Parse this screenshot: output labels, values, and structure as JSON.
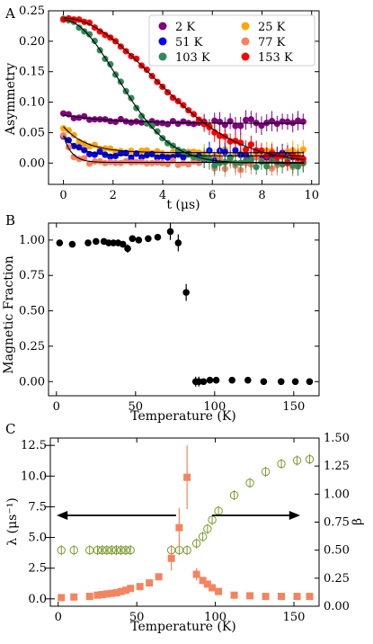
{
  "chart_data": [
    {
      "panel": "A",
      "type": "scatter",
      "xlabel": "t (μs)",
      "ylabel": "Asymmetry",
      "xlim": [
        -0.6,
        10.3
      ],
      "ylim": [
        -0.035,
        0.25
      ],
      "xticks": [
        0,
        2,
        4,
        6,
        8,
        10
      ],
      "yticks": [
        0.0,
        0.05,
        0.1,
        0.15,
        0.2,
        0.25
      ],
      "legend": "top-right",
      "fit_lines": true,
      "series": [
        {
          "name": "2 K",
          "color": "#800080",
          "decay": "flat",
          "a0": 0.079,
          "aInf": 0.065,
          "rate": 0.5,
          "noise": 0.003
        },
        {
          "name": "25 K",
          "color": "#FFA500",
          "decay": "exp",
          "a0": 0.06,
          "aInf": 0.017,
          "rate": 1.1,
          "noise": 0.004
        },
        {
          "name": "51 K",
          "color": "#0000FF",
          "decay": "exp",
          "a0": 0.045,
          "aInf": 0.012,
          "rate": 1.6,
          "noise": 0.004
        },
        {
          "name": "77 K",
          "color": "#FA8060",
          "decay": "exp",
          "a0": 0.045,
          "aInf": 0.001,
          "rate": 3.0,
          "noise": 0.004
        },
        {
          "name": "103 K",
          "color": "#2E8B57",
          "decay": "gauss",
          "a0": 0.235,
          "aInf": 0.0,
          "rate": 0.33,
          "noise": 0.003
        },
        {
          "name": "153 K",
          "color": "#FF0000",
          "decay": "gauss",
          "a0": 0.238,
          "aInf": 0.0,
          "rate": 0.2,
          "noise": 0.003
        }
      ]
    },
    {
      "panel": "B",
      "type": "scatter",
      "xlabel": "Temperature  (K)",
      "ylabel": "Magnetic Fraction",
      "xlim": [
        -5,
        166
      ],
      "ylim": [
        -0.1,
        1.12
      ],
      "xticks": [
        0,
        50,
        100,
        150
      ],
      "yticks": [
        0.0,
        0.25,
        0.5,
        0.75,
        1.0
      ],
      "color": "#000000",
      "points": [
        {
          "x": 2,
          "y": 0.98
        },
        {
          "x": 10,
          "y": 0.97
        },
        {
          "x": 20,
          "y": 0.98
        },
        {
          "x": 25,
          "y": 0.99
        },
        {
          "x": 30,
          "y": 0.99
        },
        {
          "x": 33,
          "y": 0.98
        },
        {
          "x": 36,
          "y": 0.98
        },
        {
          "x": 39,
          "y": 0.98
        },
        {
          "x": 42,
          "y": 0.97
        },
        {
          "x": 45,
          "y": 0.94
        },
        {
          "x": 48,
          "y": 1.01
        },
        {
          "x": 52,
          "y": 1.0
        },
        {
          "x": 58,
          "y": 1.01
        },
        {
          "x": 64,
          "y": 1.02
        },
        {
          "x": 72,
          "y": 1.06
        },
        {
          "x": 77,
          "y": 0.98
        },
        {
          "x": 82,
          "y": 0.63
        },
        {
          "x": 88,
          "y": 0.0
        },
        {
          "x": 90,
          "y": 0.0
        },
        {
          "x": 93,
          "y": 0.0
        },
        {
          "x": 97,
          "y": 0.01
        },
        {
          "x": 101,
          "y": 0.01
        },
        {
          "x": 111,
          "y": 0.01
        },
        {
          "x": 121,
          "y": 0.01
        },
        {
          "x": 131,
          "y": 0.0
        },
        {
          "x": 142,
          "y": 0.0
        },
        {
          "x": 151,
          "y": 0.0
        },
        {
          "x": 160,
          "y": 0.0
        }
      ]
    },
    {
      "panel": "C",
      "type": "scatter",
      "xlabel": "Temperature (K)",
      "ylabel_left": "λ (μs⁻¹)",
      "ylabel_right": "β",
      "xlim": [
        -5,
        166
      ],
      "ylim_left": [
        -0.6,
        13.1
      ],
      "ylim_right": [
        0.0,
        1.5
      ],
      "xticks": [
        0,
        50,
        100,
        150
      ],
      "yticks_left": [
        0.0,
        2.5,
        5.0,
        7.5,
        10.0,
        12.5
      ],
      "yticks_right": [
        0.0,
        0.25,
        0.5,
        0.75,
        1.0,
        1.25,
        1.5
      ],
      "series": [
        {
          "name": "λ",
          "axis": "left",
          "color": "#F4845F",
          "marker": "square",
          "points": [
            {
              "x": 2,
              "y": 0.1
            },
            {
              "x": 10,
              "y": 0.15
            },
            {
              "x": 20,
              "y": 0.2
            },
            {
              "x": 25,
              "y": 0.3
            },
            {
              "x": 28,
              "y": 0.35
            },
            {
              "x": 31,
              "y": 0.4
            },
            {
              "x": 34,
              "y": 0.45
            },
            {
              "x": 37,
              "y": 0.5
            },
            {
              "x": 40,
              "y": 0.6
            },
            {
              "x": 43,
              "y": 0.7
            },
            {
              "x": 46,
              "y": 0.85
            },
            {
              "x": 52,
              "y": 1.0
            },
            {
              "x": 58,
              "y": 1.3
            },
            {
              "x": 64,
              "y": 1.8
            },
            {
              "x": 72,
              "y": 3.3
            },
            {
              "x": 77,
              "y": 5.8
            },
            {
              "x": 82,
              "y": 9.9
            },
            {
              "x": 88,
              "y": 2.0
            },
            {
              "x": 92,
              "y": 1.5
            },
            {
              "x": 95,
              "y": 1.2
            },
            {
              "x": 98,
              "y": 0.9
            },
            {
              "x": 102,
              "y": 0.6
            },
            {
              "x": 112,
              "y": 0.3
            },
            {
              "x": 122,
              "y": 0.25
            },
            {
              "x": 132,
              "y": 0.2
            },
            {
              "x": 142,
              "y": 0.2
            },
            {
              "x": 152,
              "y": 0.2
            },
            {
              "x": 160,
              "y": 0.2
            }
          ]
        },
        {
          "name": "β",
          "axis": "right",
          "color": "#7A9A2E",
          "marker": "open-circle",
          "points": [
            {
              "x": 2,
              "y": 0.5
            },
            {
              "x": 10,
              "y": 0.5
            },
            {
              "x": 20,
              "y": 0.5
            },
            {
              "x": 25,
              "y": 0.5
            },
            {
              "x": 28,
              "y": 0.5
            },
            {
              "x": 31,
              "y": 0.5
            },
            {
              "x": 34,
              "y": 0.5
            },
            {
              "x": 37,
              "y": 0.5
            },
            {
              "x": 40,
              "y": 0.5
            },
            {
              "x": 43,
              "y": 0.5
            },
            {
              "x": 46,
              "y": 0.5
            },
            {
              "x": 72,
              "y": 0.5
            },
            {
              "x": 77,
              "y": 0.5
            },
            {
              "x": 82,
              "y": 0.5
            },
            {
              "x": 88,
              "y": 0.56
            },
            {
              "x": 92,
              "y": 0.62
            },
            {
              "x": 95,
              "y": 0.69
            },
            {
              "x": 98,
              "y": 0.77
            },
            {
              "x": 102,
              "y": 0.85
            },
            {
              "x": 112,
              "y": 0.99
            },
            {
              "x": 122,
              "y": 1.1
            },
            {
              "x": 132,
              "y": 1.2
            },
            {
              "x": 142,
              "y": 1.27
            },
            {
              "x": 152,
              "y": 1.3
            },
            {
              "x": 160,
              "y": 1.31
            }
          ]
        }
      ],
      "annotations": [
        "arrow-left",
        "arrow-right"
      ]
    }
  ]
}
